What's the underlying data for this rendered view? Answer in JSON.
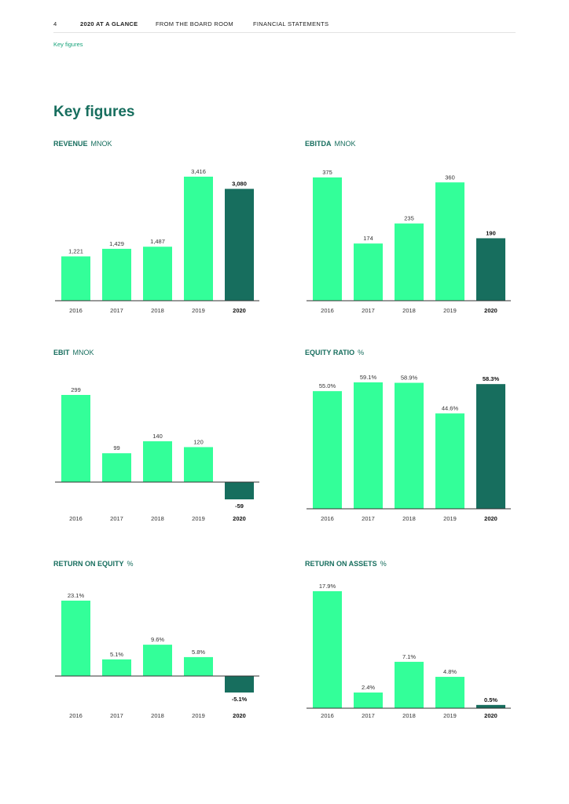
{
  "header": {
    "page_number": "4",
    "nav": [
      "2020 AT A GLANCE",
      "FROM THE BOARD ROOM",
      "FINANCIAL STATEMENTS"
    ],
    "breadcrumb": "Key figures"
  },
  "page_title": "Key figures",
  "colors": {
    "bar": "#33ff99",
    "highlight": "#176e5e",
    "axis": "#333333",
    "title": "#176e5e",
    "breadcrumb": "#17a37a"
  },
  "chart_data": [
    {
      "type": "bar",
      "title": "REVENUE",
      "unit": "MNOK",
      "categories": [
        "2016",
        "2017",
        "2018",
        "2019",
        "2020"
      ],
      "values": [
        1221,
        1429,
        1487,
        3416,
        3080
      ],
      "labels": [
        "1,221",
        "1,429",
        "1,487",
        "3,416",
        "3,080"
      ],
      "highlight": "2020",
      "ylim": [
        0,
        3416
      ]
    },
    {
      "type": "bar",
      "title": "EBITDA",
      "unit": "MNOK",
      "categories": [
        "2016",
        "2017",
        "2018",
        "2019",
        "2020"
      ],
      "values": [
        375,
        174,
        235,
        360,
        190
      ],
      "labels": [
        "375",
        "174",
        "235",
        "360",
        "190"
      ],
      "highlight": "2020",
      "ylim": [
        0,
        375
      ]
    },
    {
      "type": "bar",
      "title": "EBIT",
      "unit": "MNOK",
      "categories": [
        "2016",
        "2017",
        "2018",
        "2019",
        "2020"
      ],
      "values": [
        299,
        99,
        140,
        120,
        -59
      ],
      "labels": [
        "299",
        "99",
        "140",
        "120",
        "-59"
      ],
      "highlight": "2020",
      "ylim": [
        -59,
        299
      ]
    },
    {
      "type": "bar",
      "title": "EQUITY RATIO",
      "unit": "%",
      "categories": [
        "2016",
        "2017",
        "2018",
        "2019",
        "2020"
      ],
      "values": [
        55.0,
        59.1,
        58.9,
        44.6,
        58.3
      ],
      "labels": [
        "55.0%",
        "59.1%",
        "58.9%",
        "44.6%",
        "58.3%"
      ],
      "highlight": "2020",
      "ylim": [
        0,
        59.1
      ]
    },
    {
      "type": "bar",
      "title": "RETURN ON EQUITY",
      "unit": "%",
      "categories": [
        "2016",
        "2017",
        "2018",
        "2019",
        "2020"
      ],
      "values": [
        23.1,
        5.1,
        9.6,
        5.8,
        -5.1
      ],
      "labels": [
        "23.1%",
        "5.1%",
        "9.6%",
        "5.8%",
        "-5.1%"
      ],
      "highlight": "2020",
      "ylim": [
        -5.1,
        23.1
      ]
    },
    {
      "type": "bar",
      "title": "RETURN ON ASSETS",
      "unit": "%",
      "categories": [
        "2016",
        "2017",
        "2018",
        "2019",
        "2020"
      ],
      "values": [
        17.9,
        2.4,
        7.1,
        4.8,
        0.5
      ],
      "labels": [
        "17.9%",
        "2.4%",
        "7.1%",
        "4.8%",
        "0.5%"
      ],
      "highlight": "2020",
      "ylim": [
        0,
        17.9
      ]
    }
  ]
}
